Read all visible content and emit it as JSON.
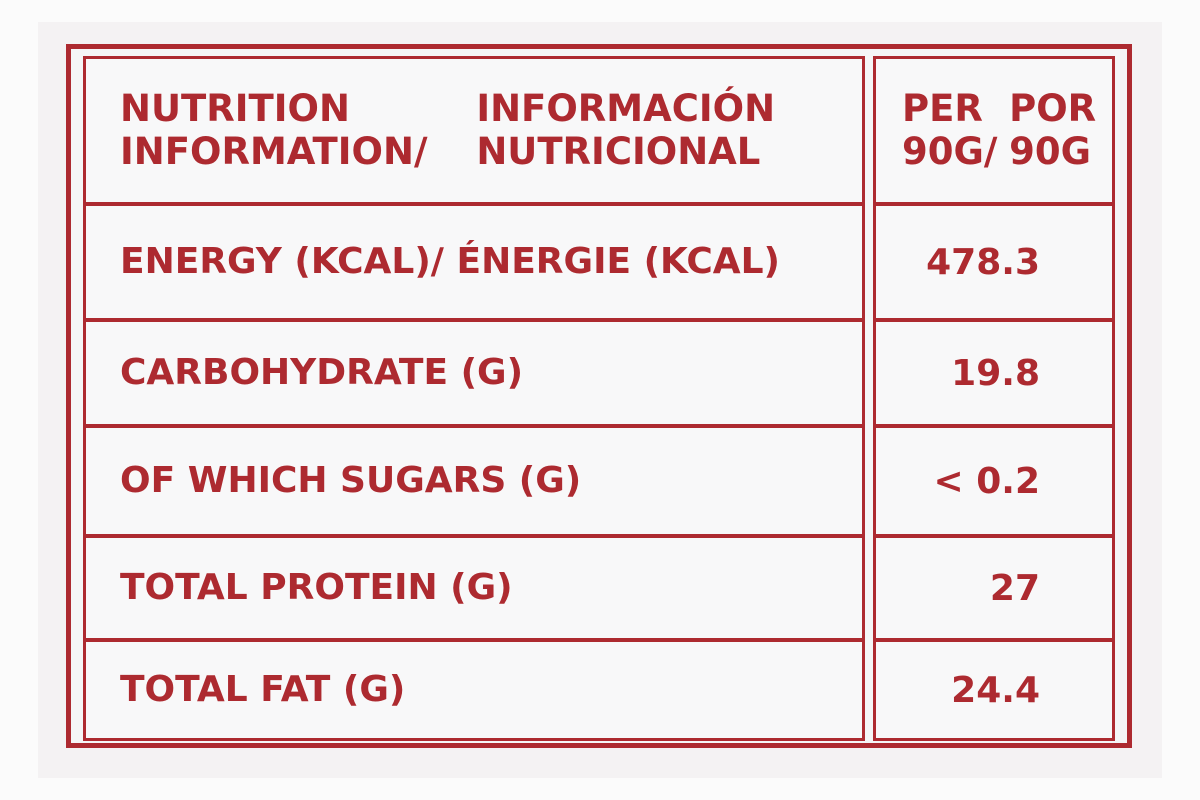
{
  "header": {
    "title_line1": "NUTRITION INFORMATION/",
    "title_line2": "INFORMACIÓN NUTRICIONAL",
    "per_line1": "PER 90G/",
    "per_line2": "POR 90G"
  },
  "rows": [
    {
      "nutrient": "ENERGY (KCAL)/ ÉNERGIE (KCAL)",
      "value": "478.3"
    },
    {
      "nutrient": "CARBOHYDRATE (G)",
      "value": "19.8"
    },
    {
      "nutrient": "OF WHICH SUGARS (G)",
      "value": "< 0.2"
    },
    {
      "nutrient": "TOTAL PROTEIN (G)",
      "value": "27"
    },
    {
      "nutrient": "TOTAL FAT (G)",
      "value": "24.4"
    }
  ],
  "colors": {
    "ink": "#ad2a30",
    "background": "#f8f8f9"
  }
}
